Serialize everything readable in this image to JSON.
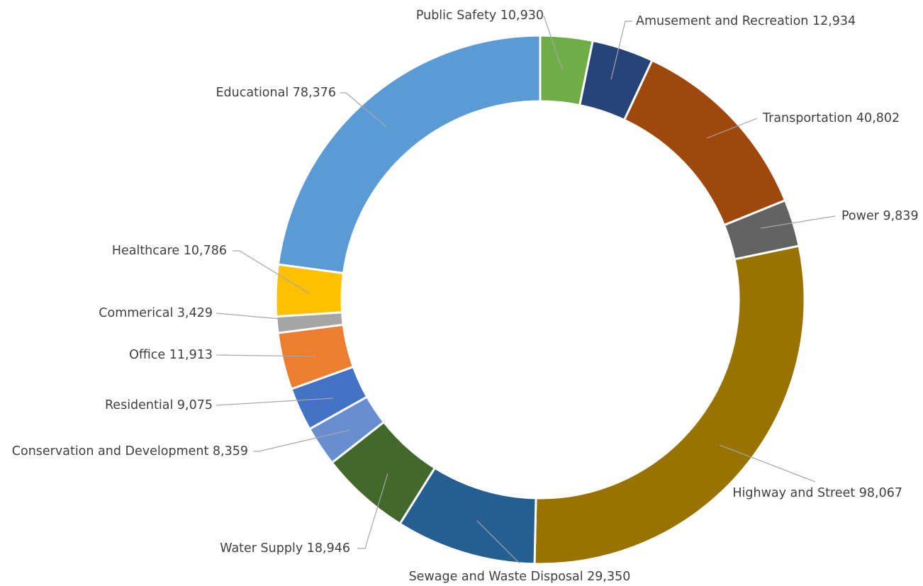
{
  "chart_data": {
    "type": "pie",
    "variant": "donut",
    "start_angle_deg": 0,
    "direction": "clockwise",
    "categories": [
      "Public Safety",
      "Amusement and Recreation",
      "Transportation",
      "Power",
      "Highway and Street",
      "Sewage and Waste Disposal",
      "Water Supply",
      "Conservation and Development",
      "Residential",
      "Office",
      "Commerical",
      "Healthcare",
      "Educational"
    ],
    "values": [
      10930,
      12934,
      40802,
      9839,
      98067,
      29350,
      18946,
      8359,
      9075,
      11913,
      3429,
      10786,
      78376
    ],
    "value_labels": [
      "10,930",
      "12,934",
      "40,802",
      "9,839",
      "98,067",
      "29,350",
      "18,946",
      "8,359",
      "9,075",
      "11,913",
      "3,429",
      "10,786",
      "78,376"
    ],
    "colors": [
      "#70ad47",
      "#264478",
      "#9e480e",
      "#636363",
      "#997300",
      "#255e91",
      "#43682b",
      "#698ed0",
      "#4472c4",
      "#ed7d31",
      "#a5a5a5",
      "#ffc000",
      "#5b9bd5"
    ],
    "title": "",
    "legend": "none",
    "data_labels": "outside with leader lines, category and value"
  }
}
